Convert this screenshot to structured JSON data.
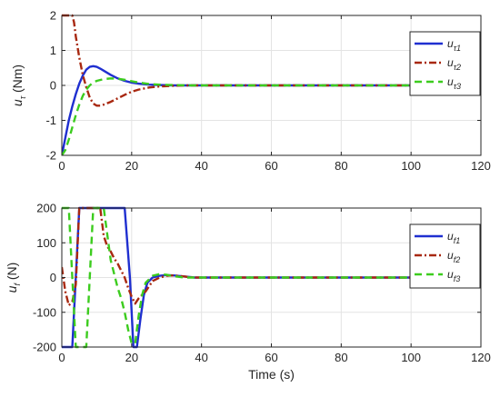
{
  "chart_data": [
    {
      "type": "line",
      "ylabel_main": "u",
      "ylabel_sub": "τ",
      "ylabel_unit": " (Nm)",
      "xlabel": "",
      "xlim": [
        0,
        120
      ],
      "ylim": [
        -2,
        2
      ],
      "xticks": [
        0,
        20,
        40,
        60,
        80,
        100,
        120
      ],
      "yticks": [
        -2,
        -1,
        0,
        1,
        2
      ],
      "grid": true,
      "legend_position": "top-right",
      "series": [
        {
          "name_main": "u",
          "name_sub": "τ1",
          "color": "#1f2fd0",
          "style": "solid",
          "x": [
            0,
            1,
            2,
            3,
            4,
            5,
            6,
            7,
            8,
            9,
            10,
            11,
            12,
            14,
            16,
            18,
            20,
            22,
            25,
            28,
            32,
            36,
            40,
            50,
            60,
            120
          ],
          "y": [
            -2,
            -1.5,
            -1.0,
            -0.6,
            -0.25,
            0.05,
            0.28,
            0.45,
            0.53,
            0.55,
            0.53,
            0.48,
            0.42,
            0.3,
            0.2,
            0.13,
            0.08,
            0.05,
            0.02,
            0.01,
            0.0,
            0.0,
            0.0,
            0.0,
            0.0,
            0.0
          ]
        },
        {
          "name_main": "u",
          "name_sub": "τ2",
          "color": "#a82810",
          "style": "dashdot",
          "x": [
            0,
            1,
            2,
            3,
            3.5,
            4,
            5,
            6,
            7,
            8,
            9,
            10,
            11,
            12,
            14,
            16,
            18,
            20,
            22,
            25,
            28,
            32,
            36,
            40,
            50,
            60,
            120
          ],
          "y": [
            2,
            2,
            2,
            2,
            1.8,
            1.4,
            0.8,
            0.3,
            -0.05,
            -0.35,
            -0.52,
            -0.58,
            -0.58,
            -0.55,
            -0.47,
            -0.37,
            -0.27,
            -0.18,
            -0.12,
            -0.06,
            -0.03,
            -0.01,
            0.0,
            0.0,
            0.0,
            0.0,
            0.0
          ]
        },
        {
          "name_main": "u",
          "name_sub": "τ3",
          "color": "#3ccc1e",
          "style": "dashed",
          "x": [
            0,
            1,
            2,
            3,
            4,
            5,
            6,
            7,
            8,
            9,
            10,
            12,
            14,
            16,
            18,
            20,
            22,
            25,
            28,
            32,
            36,
            40,
            50,
            60,
            120
          ],
          "y": [
            -2,
            -1.85,
            -1.55,
            -1.2,
            -0.85,
            -0.55,
            -0.3,
            -0.12,
            0.0,
            0.08,
            0.13,
            0.18,
            0.2,
            0.19,
            0.16,
            0.12,
            0.08,
            0.04,
            0.02,
            0.01,
            0.0,
            0.0,
            0.0,
            0.0,
            0.0
          ]
        }
      ]
    },
    {
      "type": "line",
      "ylabel_main": "u",
      "ylabel_sub": "f",
      "ylabel_unit": " (N)",
      "xlabel": "Time (s)",
      "xlim": [
        0,
        120
      ],
      "ylim": [
        -200,
        200
      ],
      "xticks": [
        0,
        20,
        40,
        60,
        80,
        100,
        120
      ],
      "yticks": [
        -200,
        -100,
        0,
        100,
        200
      ],
      "grid": true,
      "legend_position": "top-right",
      "series": [
        {
          "name_main": "u",
          "name_sub": "f1",
          "color": "#1f2fd0",
          "style": "solid",
          "x": [
            0,
            3,
            4,
            5,
            17,
            18,
            19.5,
            20.5,
            21.5,
            22.5,
            23.5,
            24.5,
            26,
            28,
            30,
            32,
            35,
            38,
            42,
            50,
            60,
            120
          ],
          "y": [
            -200,
            -200,
            0,
            200,
            200,
            200,
            0,
            -200,
            -200,
            -120,
            -50,
            -15,
            0,
            5,
            7,
            6,
            3,
            0,
            0,
            0,
            0,
            0
          ]
        },
        {
          "name_main": "u",
          "name_sub": "f2",
          "color": "#a82810",
          "style": "dashdot",
          "x": [
            0,
            1,
            2,
            3,
            4,
            5,
            6,
            7,
            8,
            10,
            11,
            12,
            13,
            14,
            15,
            16,
            17,
            18,
            19,
            20,
            21,
            22,
            24,
            26,
            28,
            30,
            32,
            35,
            38,
            42,
            50,
            60,
            120
          ],
          "y": [
            30,
            -40,
            -80,
            -70,
            -20,
            200,
            200,
            200,
            200,
            200,
            200,
            120,
            90,
            75,
            55,
            40,
            20,
            0,
            -30,
            -55,
            -75,
            -60,
            -40,
            -10,
            0,
            5,
            6,
            3,
            0,
            0,
            0,
            0,
            0
          ]
        },
        {
          "name_main": "u",
          "name_sub": "f3",
          "color": "#3ccc1e",
          "style": "dashed",
          "x": [
            0,
            1,
            2,
            3,
            4,
            5,
            6,
            7,
            8,
            9,
            11,
            12,
            14,
            16,
            17,
            18,
            19,
            20,
            21,
            22,
            23,
            24,
            26,
            28,
            30,
            32,
            35,
            40,
            50,
            60,
            120
          ],
          "y": [
            200,
            200,
            200,
            0,
            -200,
            -200,
            -200,
            -200,
            0,
            200,
            200,
            200,
            50,
            -30,
            -60,
            -100,
            -150,
            -190,
            -190,
            -110,
            -50,
            -15,
            5,
            10,
            8,
            4,
            0,
            0,
            0,
            0,
            0
          ]
        }
      ]
    }
  ]
}
